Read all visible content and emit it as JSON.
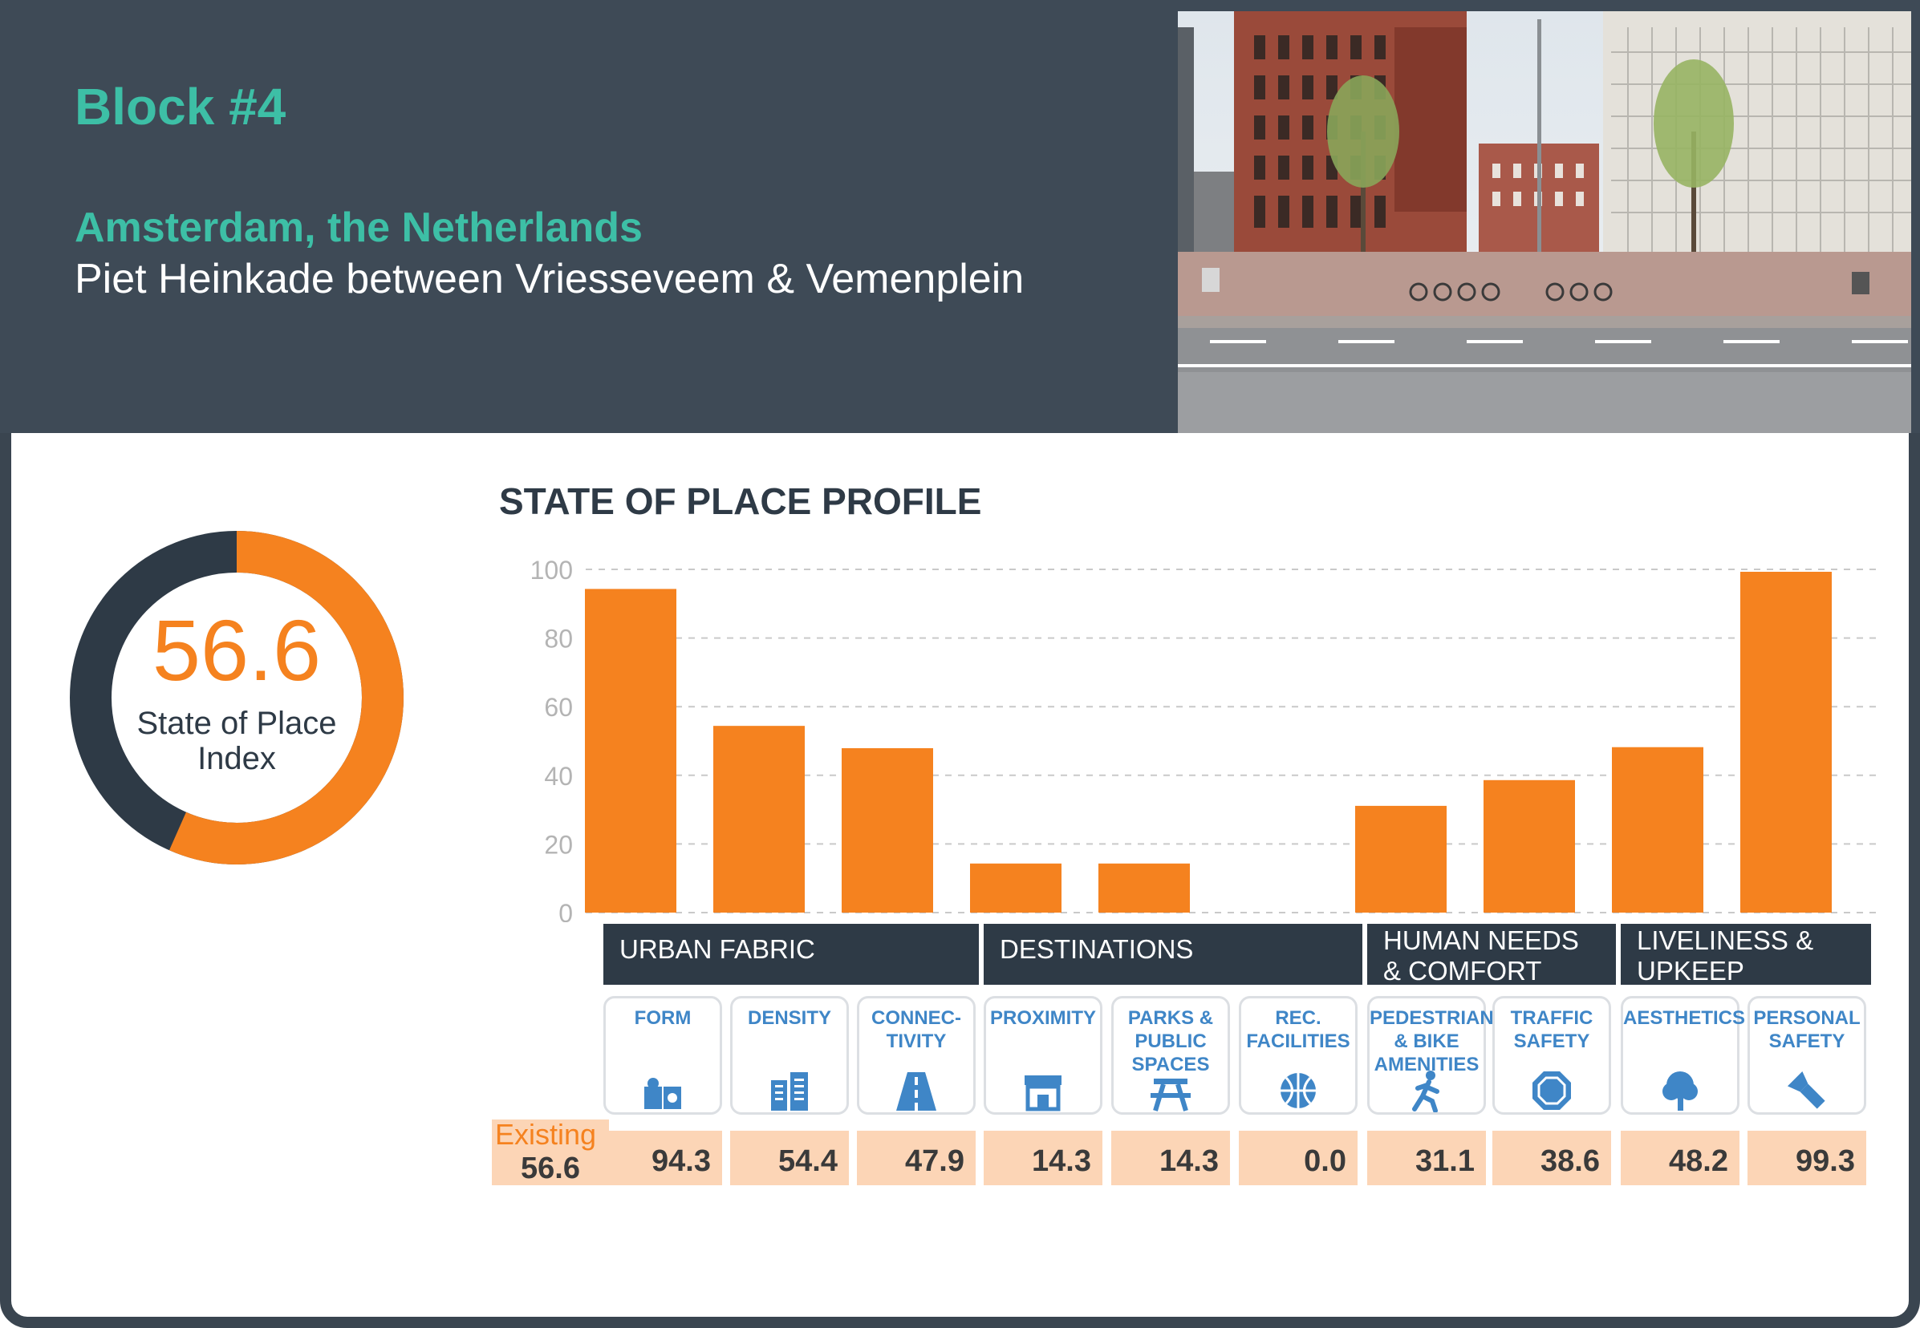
{
  "header": {
    "block_title": "Block #4",
    "city": "Amsterdam, the Netherlands",
    "street": "Piet Heinkade between Vriesseveem & Vemenplein"
  },
  "index": {
    "value": "56.6",
    "label_line1": "State of Place",
    "label_line2": "Index",
    "fraction": 0.566
  },
  "colors": {
    "accent": "#f5821f",
    "dark": "#2e3a46",
    "teal": "#3dbfa6",
    "icon_blue": "#3f86c7",
    "score_bg": "#fcd5b6"
  },
  "chart_data": {
    "type": "bar",
    "title": "STATE OF PLACE PROFILE",
    "categories": [
      "FORM",
      "DENSITY",
      "CONNEC-TIVITY",
      "PROXIMITY",
      "PARKS & PUBLIC SPACES",
      "REC. FACILITIES",
      "PEDESTRIAN & BIKE AMENITIES",
      "TRAFFIC SAFETY",
      "AESTHETICS",
      "PERSONAL SAFETY"
    ],
    "values": [
      94.3,
      54.4,
      47.9,
      14.3,
      14.3,
      0.0,
      31.1,
      38.6,
      48.2,
      99.3
    ],
    "ylim": [
      0,
      100
    ],
    "yticks": [
      "0",
      "20",
      "40",
      "60",
      "80",
      "100"
    ],
    "grid": true,
    "groups": [
      {
        "name": "URBAN FABRIC",
        "span": 3
      },
      {
        "name": "DESTINATIONS",
        "span": 3
      },
      {
        "name": "HUMAN NEEDS & COMFORT",
        "span": 2
      },
      {
        "name": "LIVELINESS & UPKEEP",
        "span": 2
      }
    ]
  },
  "groups": {
    "urban_fabric": "URBAN FABRIC",
    "destinations": "DESTINATIONS",
    "human_needs_1": "HUMAN NEEDS",
    "human_needs_2": "& COMFORT",
    "liveliness_1": "LIVELINESS &",
    "liveliness_2": "UPKEEP"
  },
  "cards": [
    {
      "lines": [
        "FORM"
      ],
      "icon": "puzzle-icon",
      "score": "94.3"
    },
    {
      "lines": [
        "DENSITY"
      ],
      "icon": "buildings-icon",
      "score": "54.4"
    },
    {
      "lines": [
        "CONNEC-",
        "TIVITY"
      ],
      "icon": "road-icon",
      "score": "47.9"
    },
    {
      "lines": [
        "PROXIMITY"
      ],
      "icon": "storefront-icon",
      "score": "14.3"
    },
    {
      "lines": [
        "PARKS &",
        "PUBLIC",
        "SPACES"
      ],
      "icon": "picnic-table-icon",
      "score": "14.3"
    },
    {
      "lines": [
        "REC.",
        "FACILITIES"
      ],
      "icon": "basketball-icon",
      "score": "0.0"
    },
    {
      "lines": [
        "PEDESTRIAN",
        "& BIKE",
        "AMENITIES"
      ],
      "icon": "pedestrian-icon",
      "score": "31.1"
    },
    {
      "lines": [
        "TRAFFIC",
        "SAFETY"
      ],
      "icon": "stop-sign-icon",
      "score": "38.6"
    },
    {
      "lines": [
        "AESTHETICS"
      ],
      "icon": "tree-icon",
      "score": "48.2"
    },
    {
      "lines": [
        "PERSONAL",
        "SAFETY"
      ],
      "icon": "flashlight-icon",
      "score": "99.3"
    }
  ],
  "existing": {
    "label": "Existing",
    "value": "56.6"
  }
}
